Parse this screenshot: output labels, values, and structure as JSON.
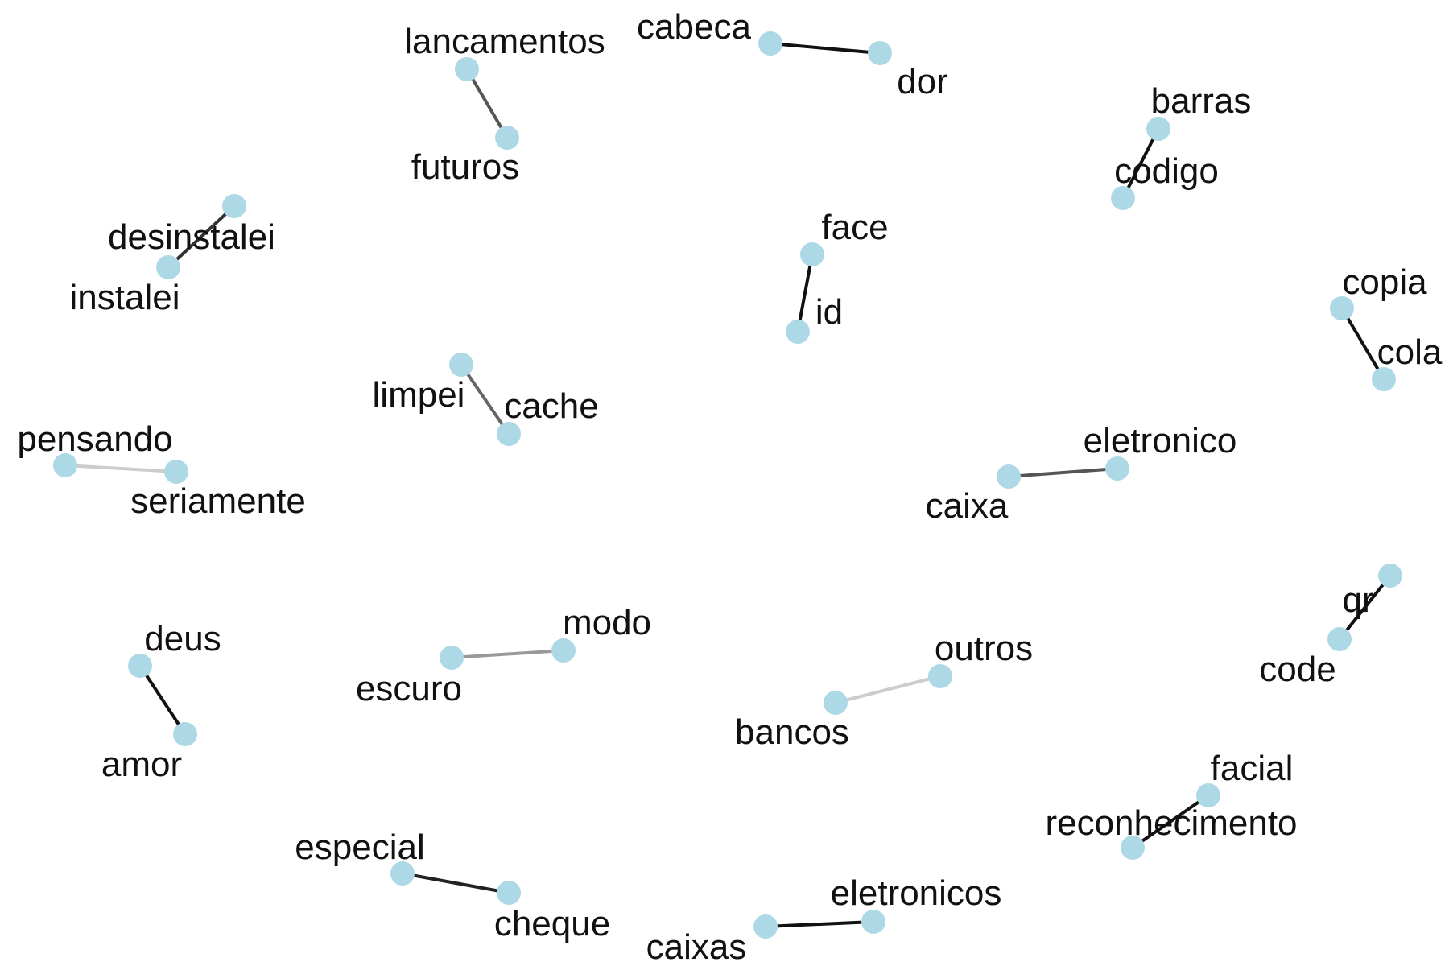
{
  "graph": {
    "node_color": "#add8e6",
    "label_color": "#111111",
    "pairs": [
      {
        "a": "cabeca",
        "b": "dor",
        "edge_color": "#111111"
      },
      {
        "a": "lancamentos",
        "b": "futuros",
        "edge_color": "#555555"
      },
      {
        "a": "barras",
        "b": "codigo",
        "edge_color": "#111111"
      },
      {
        "a": "desinstalei",
        "b": "instalei",
        "edge_color": "#333333"
      },
      {
        "a": "face",
        "b": "id",
        "edge_color": "#111111"
      },
      {
        "a": "copia",
        "b": "cola",
        "edge_color": "#111111"
      },
      {
        "a": "limpei",
        "b": "cache",
        "edge_color": "#666666"
      },
      {
        "a": "pensando",
        "b": "seriamente",
        "edge_color": "#cccccc"
      },
      {
        "a": "caixa",
        "b": "eletronico",
        "edge_color": "#555555"
      },
      {
        "a": "qr",
        "b": "code",
        "edge_color": "#111111"
      },
      {
        "a": "deus",
        "b": "amor",
        "edge_color": "#111111"
      },
      {
        "a": "escuro",
        "b": "modo",
        "edge_color": "#999999"
      },
      {
        "a": "bancos",
        "b": "outros",
        "edge_color": "#cccccc"
      },
      {
        "a": "facial",
        "b": "reconhecimento",
        "edge_color": "#111111"
      },
      {
        "a": "especial",
        "b": "cheque",
        "edge_color": "#222222"
      },
      {
        "a": "caixas",
        "b": "eletronicos",
        "edge_color": "#111111"
      }
    ]
  }
}
